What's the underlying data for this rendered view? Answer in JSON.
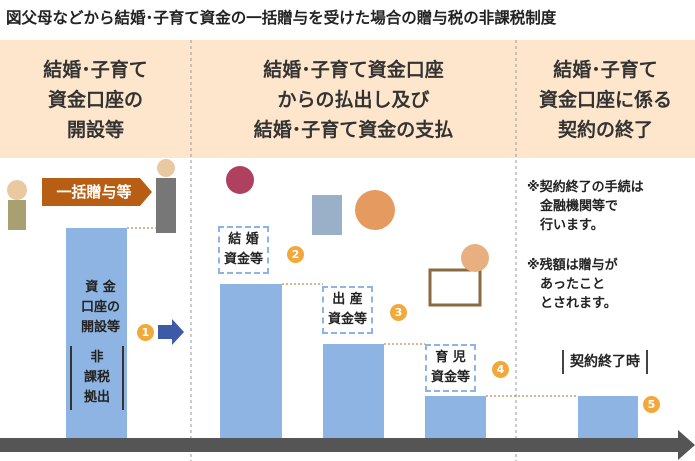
{
  "title": "図父母などから結婚･子育て資金の一括贈与を受けた場合の贈与税の非課税制度",
  "columns": [
    {
      "lines": [
        "結婚･子育て",
        "資金口座の",
        "開設等"
      ]
    },
    {
      "lines": [
        "結婚･子育て資金口座",
        "からの払出し及び",
        "結婚･子育て資金の支払"
      ]
    },
    {
      "lines": [
        "結婚･子育て",
        "資金口座に係る",
        "契約の終了"
      ]
    }
  ],
  "gift_arrow": "一括贈与等",
  "steps": [
    {
      "lines": [
        "資 金",
        "口座の",
        "開設等"
      ],
      "number": "1",
      "bracket": [
        "非",
        "課税",
        "拠出"
      ]
    },
    {
      "lines": [
        "結 婚",
        "資金等"
      ],
      "number": "2"
    },
    {
      "lines": [
        "出 産",
        "資金等"
      ],
      "number": "3"
    },
    {
      "lines": [
        "育 児",
        "資金等"
      ],
      "number": "4"
    },
    {
      "lines": [
        "契約終了時"
      ],
      "number": "5"
    }
  ],
  "notes": [
    {
      "lines": [
        "※契約終了の手続は",
        "金融機関等で",
        "行います。"
      ]
    },
    {
      "lines": [
        "※残額は贈与が",
        "あったこと",
        "とされます。"
      ]
    }
  ]
}
